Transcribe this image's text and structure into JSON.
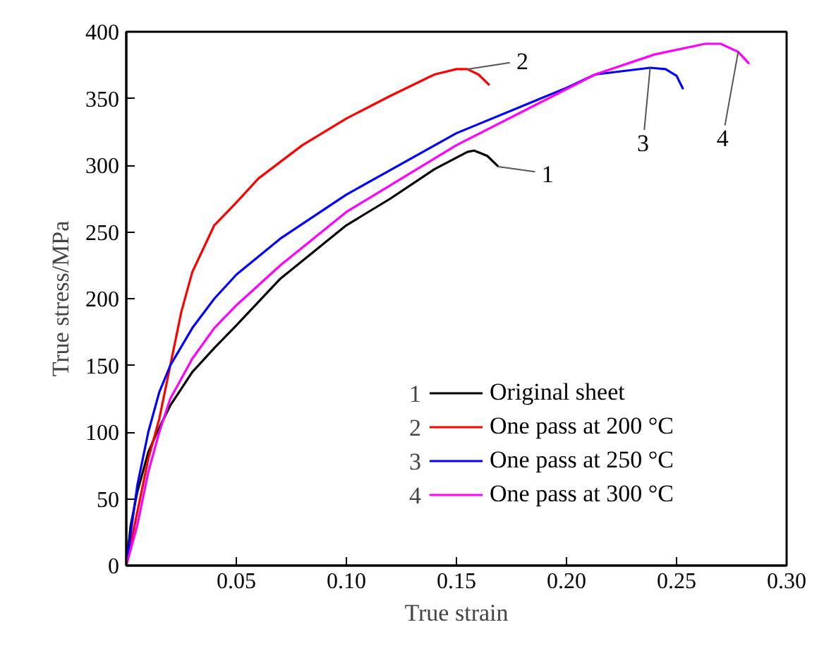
{
  "chart_data": {
    "type": "line",
    "xlabel": "True strain",
    "ylabel": "True stress/MPa",
    "xlim": [
      0,
      0.3
    ],
    "ylim": [
      0,
      400
    ],
    "xticks": [
      {
        "value": 0.05,
        "label": "0.05"
      },
      {
        "value": 0.1,
        "label": "0.10"
      },
      {
        "value": 0.15,
        "label": "0.15"
      },
      {
        "value": 0.2,
        "label": "0.20"
      },
      {
        "value": 0.25,
        "label": "0.25"
      },
      {
        "value": 0.3,
        "label": "0.30"
      }
    ],
    "yticks": [
      0,
      50,
      100,
      150,
      200,
      250,
      300,
      350,
      400
    ],
    "grid": false,
    "legend": "bottom right",
    "marker": "none",
    "line_style": "solid",
    "series": [
      {
        "name": "Original sheet",
        "color": "#000000",
        "x": [
          0,
          0.002,
          0.005,
          0.01,
          0.014,
          0.02,
          0.03,
          0.04,
          0.05,
          0.07,
          0.1,
          0.12,
          0.14,
          0.155,
          0.158,
          0.164,
          0.169
        ],
        "values": [
          0,
          30,
          55,
          85,
          100,
          120,
          145,
          163,
          180,
          215,
          255,
          275,
          297,
          310,
          311,
          307,
          299
        ]
      },
      {
        "name": "One pass at 200 °C",
        "color": "#ff0000",
        "x": [
          0,
          0.005,
          0.01,
          0.015,
          0.02,
          0.025,
          0.03,
          0.04,
          0.05,
          0.06,
          0.08,
          0.1,
          0.12,
          0.14,
          0.15,
          0.155,
          0.16,
          0.165
        ],
        "values": [
          0,
          40,
          80,
          110,
          150,
          190,
          220,
          255,
          272,
          290,
          315,
          335,
          352,
          368,
          372,
          372,
          368,
          360
        ]
      },
      {
        "name": "One pass at 250 °C",
        "color": "#0000ff",
        "x": [
          0,
          0.005,
          0.01,
          0.015,
          0.02,
          0.03,
          0.04,
          0.05,
          0.07,
          0.1,
          0.15,
          0.2,
          0.213,
          0.238,
          0.245,
          0.25,
          0.253
        ],
        "values": [
          0,
          60,
          100,
          130,
          150,
          178,
          200,
          218,
          245,
          278,
          324,
          358,
          368,
          373,
          372,
          367,
          357
        ]
      },
      {
        "name": "One pass at 300 °C",
        "color": "#ff00ff",
        "x": [
          0,
          0.005,
          0.01,
          0.015,
          0.02,
          0.03,
          0.04,
          0.05,
          0.07,
          0.1,
          0.15,
          0.2,
          0.213,
          0.24,
          0.263,
          0.27,
          0.278,
          0.283
        ],
        "values": [
          0,
          30,
          70,
          100,
          125,
          155,
          178,
          195,
          225,
          265,
          315,
          357,
          368,
          383,
          391,
          391,
          385,
          376
        ]
      }
    ],
    "annotations": [
      {
        "text": "1",
        "x": 0.169,
        "y": 299
      },
      {
        "text": "2",
        "x": 0.155,
        "y": 372
      },
      {
        "text": "3",
        "x": 0.238,
        "y": 373
      },
      {
        "text": "4",
        "x": 0.278,
        "y": 385
      }
    ]
  }
}
